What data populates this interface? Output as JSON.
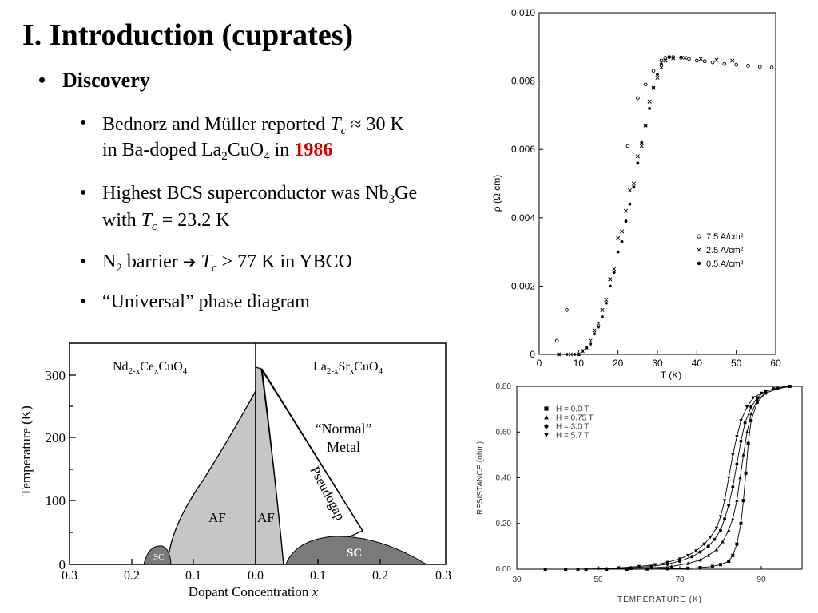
{
  "title": "I. Introduction (cuprates)",
  "bullet_main": "Discovery",
  "bullets": {
    "b1": {
      "t1": "Bednorz and Müller reported ",
      "tc": "T",
      "tc_sub": "c",
      "t2": " ≈ 30 K",
      "t3": "in Ba-doped La",
      "s1": "2",
      "t4": "CuO",
      "s2": "4",
      "t5": " in ",
      "year": "1986"
    },
    "b2": {
      "t1": "Highest BCS superconductor was Nb",
      "s1": "3",
      "t2": "Ge",
      "t3": "with ",
      "tc": "T",
      "tc_sub": "c",
      "t4": " = 23.2 K"
    },
    "b3": {
      "n": "N",
      "n_sub": "2",
      "t1": " barrier ",
      "arrow": "➔",
      "tc": "T",
      "tc_sub": "c",
      "t2": " > 77 K in YBCO"
    },
    "b4": {
      "t1": "“Universal” phase diagram"
    }
  },
  "phase_diagram": {
    "ylabel": "Temperature  (K)",
    "xlabel": "Dopant Concentration",
    "xlabel_var": "x",
    "left_compound": "Nd",
    "left_compound_parts": [
      "2-x",
      "Ce",
      "x",
      "CuO",
      "4"
    ],
    "right_compound": "La",
    "right_compound_parts": [
      "2-x",
      "Sr",
      "x",
      "CuO",
      "4"
    ],
    "labels": {
      "af_left": "AF",
      "af_right": "AF",
      "sc_left": "SC",
      "sc_right": "SC",
      "pseudogap": "Pseudogap",
      "normal1": "“Normal”",
      "normal2": "Metal"
    },
    "yticks": [
      "300",
      "200",
      "100",
      "0"
    ],
    "xticks": [
      "0.3",
      "0.2",
      "0.1",
      "0.0",
      "0.1",
      "0.2",
      "0.3"
    ]
  },
  "chart_data": [
    {
      "type": "scatter",
      "xlabel": "T (K)",
      "ylabel": "ρ  (Ω cm)",
      "xlim": [
        0,
        60
      ],
      "ylim": [
        0,
        0.01
      ],
      "xticks": [
        "0",
        "10",
        "20",
        "30",
        "40",
        "50",
        "60"
      ],
      "yticks": [
        "0",
        "0.002",
        "0.004",
        "0.006",
        "0.008",
        "0.010"
      ],
      "legend_position": "right",
      "series": [
        {
          "name": "7.5 A/cm²",
          "marker": "open-circle",
          "points": [
            [
              4.5,
              0.0004
            ],
            [
              7,
              0.0013
            ],
            [
              22.5,
              0.0061
            ],
            [
              25,
              0.0075
            ],
            [
              27,
              0.0079
            ],
            [
              29,
              0.0083
            ],
            [
              31,
              0.0086
            ],
            [
              32,
              0.00868
            ],
            [
              33,
              0.0087
            ],
            [
              34,
              0.0087
            ],
            [
              36,
              0.00868
            ],
            [
              38,
              0.00865
            ],
            [
              40,
              0.0086
            ],
            [
              42,
              0.00858
            ],
            [
              44,
              0.00855
            ],
            [
              47,
              0.0085
            ],
            [
              50,
              0.00848
            ],
            [
              53,
              0.00845
            ],
            [
              56,
              0.00842
            ],
            [
              59,
              0.0084
            ]
          ]
        },
        {
          "name": "2.5 A/cm²",
          "marker": "x",
          "points": [
            [
              5,
              0.0
            ],
            [
              8,
              0.0
            ],
            [
              10,
              0.0
            ],
            [
              11,
              0.0001
            ],
            [
              12,
              0.0002
            ],
            [
              13,
              0.0004
            ],
            [
              14,
              0.0007
            ],
            [
              15,
              0.0009
            ],
            [
              16,
              0.0013
            ],
            [
              17,
              0.0016
            ],
            [
              18,
              0.0022
            ],
            [
              19,
              0.0025
            ],
            [
              20,
              0.0034
            ],
            [
              21,
              0.0036
            ],
            [
              22,
              0.0042
            ],
            [
              23,
              0.0048
            ],
            [
              24,
              0.005
            ],
            [
              25,
              0.0058
            ],
            [
              26,
              0.0061
            ],
            [
              27,
              0.0067
            ],
            [
              28,
              0.0074
            ],
            [
              29,
              0.0078
            ],
            [
              30,
              0.0081
            ],
            [
              31,
              0.0084
            ],
            [
              32,
              0.0086
            ],
            [
              34,
              0.00867
            ],
            [
              37,
              0.00868
            ],
            [
              41,
              0.00865
            ],
            [
              45,
              0.00862
            ],
            [
              49,
              0.0086
            ]
          ]
        },
        {
          "name": "0.5 A/cm²",
          "marker": "filled-circle",
          "points": [
            [
              5,
              0.0
            ],
            [
              7,
              0.0
            ],
            [
              9,
              0.0
            ],
            [
              10,
              0.0
            ],
            [
              11,
              0.0001
            ],
            [
              12,
              0.0002
            ],
            [
              13,
              0.0003
            ],
            [
              14,
              0.0006
            ],
            [
              15,
              0.0008
            ],
            [
              16,
              0.0011
            ],
            [
              17,
              0.0015
            ],
            [
              18,
              0.002
            ],
            [
              19,
              0.0024
            ],
            [
              20,
              0.003
            ],
            [
              21,
              0.0033
            ],
            [
              22,
              0.0039
            ],
            [
              23,
              0.0044
            ],
            [
              24,
              0.0049
            ],
            [
              25,
              0.0056
            ],
            [
              26,
              0.0062
            ],
            [
              27,
              0.0067
            ],
            [
              28,
              0.0072
            ],
            [
              29,
              0.0078
            ],
            [
              30,
              0.0082
            ],
            [
              31,
              0.0085
            ],
            [
              33,
              0.0087
            ],
            [
              36,
              0.0087
            ]
          ]
        }
      ]
    },
    {
      "type": "line",
      "xlabel": "TEMPERATURE (K)",
      "ylabel": "RESISTANCE (ohm)",
      "xlim": [
        30,
        100
      ],
      "ylim": [
        0,
        0.8
      ],
      "xticks": [
        "30",
        "50",
        "70",
        "90"
      ],
      "yticks": [
        "0.00",
        "0.20",
        "0.40",
        "0.60",
        "0.80"
      ],
      "legend_position": "top-left",
      "series": [
        {
          "name": "H = 0.0 T",
          "marker": "square",
          "points": [
            [
              37,
              0.0
            ],
            [
              42,
              0.0
            ],
            [
              47,
              0.0
            ],
            [
              52,
              0.0
            ],
            [
              57,
              0.0
            ],
            [
              62,
              0.001
            ],
            [
              67,
              0.002
            ],
            [
              72,
              0.004
            ],
            [
              75,
              0.007
            ],
            [
              78,
              0.012
            ],
            [
              80,
              0.02
            ],
            [
              82,
              0.035
            ],
            [
              83,
              0.06
            ],
            [
              84,
              0.11
            ],
            [
              85,
              0.2
            ],
            [
              85.6,
              0.3
            ],
            [
              86.2,
              0.42
            ],
            [
              86.8,
              0.55
            ],
            [
              87.5,
              0.65
            ],
            [
              89,
              0.73
            ],
            [
              91,
              0.77
            ],
            [
              94,
              0.79
            ],
            [
              97,
              0.8
            ]
          ]
        },
        {
          "name": "H = 0.75 T",
          "marker": "triangle-up",
          "points": [
            [
              45,
              0.0
            ],
            [
              52,
              0.001
            ],
            [
              58,
              0.003
            ],
            [
              63,
              0.006
            ],
            [
              68,
              0.012
            ],
            [
              72,
              0.025
            ],
            [
              75,
              0.04
            ],
            [
              77,
              0.06
            ],
            [
              79,
              0.085
            ],
            [
              80.5,
              0.12
            ],
            [
              82,
              0.17
            ],
            [
              83,
              0.22
            ],
            [
              84,
              0.3
            ],
            [
              84.8,
              0.4
            ],
            [
              85.6,
              0.5
            ],
            [
              86.5,
              0.6
            ],
            [
              87.5,
              0.68
            ],
            [
              89,
              0.74
            ],
            [
              91,
              0.77
            ],
            [
              94,
              0.79
            ],
            [
              97,
              0.8
            ]
          ]
        },
        {
          "name": "H = 3.0 T",
          "marker": "circle",
          "points": [
            [
              45,
              0.0
            ],
            [
              52,
              0.002
            ],
            [
              58,
              0.006
            ],
            [
              63,
              0.012
            ],
            [
              67,
              0.022
            ],
            [
              70,
              0.035
            ],
            [
              73,
              0.055
            ],
            [
              75,
              0.075
            ],
            [
              77,
              0.1
            ],
            [
              78.5,
              0.13
            ],
            [
              80,
              0.17
            ],
            [
              81,
              0.22
            ],
            [
              82,
              0.28
            ],
            [
              83,
              0.36
            ],
            [
              84,
              0.46
            ],
            [
              85,
              0.56
            ],
            [
              86,
              0.64
            ],
            [
              87.5,
              0.71
            ],
            [
              89,
              0.75
            ],
            [
              91,
              0.78
            ],
            [
              94,
              0.79
            ],
            [
              97,
              0.8
            ]
          ]
        },
        {
          "name": "H = 5.7 T",
          "marker": "triangle-down",
          "points": [
            [
              50,
              0.002
            ],
            [
              55,
              0.006
            ],
            [
              60,
              0.012
            ],
            [
              64,
              0.02
            ],
            [
              67,
              0.03
            ],
            [
              70,
              0.045
            ],
            [
              72,
              0.06
            ],
            [
              74,
              0.08
            ],
            [
              76,
              0.11
            ],
            [
              77.5,
              0.14
            ],
            [
              79,
              0.18
            ],
            [
              80,
              0.23
            ],
            [
              81,
              0.3
            ],
            [
              82,
              0.4
            ],
            [
              83,
              0.5
            ],
            [
              84,
              0.58
            ],
            [
              85,
              0.65
            ],
            [
              86.5,
              0.71
            ],
            [
              88,
              0.75
            ],
            [
              90,
              0.77
            ],
            [
              93,
              0.79
            ],
            [
              97,
              0.8
            ]
          ]
        }
      ]
    }
  ]
}
